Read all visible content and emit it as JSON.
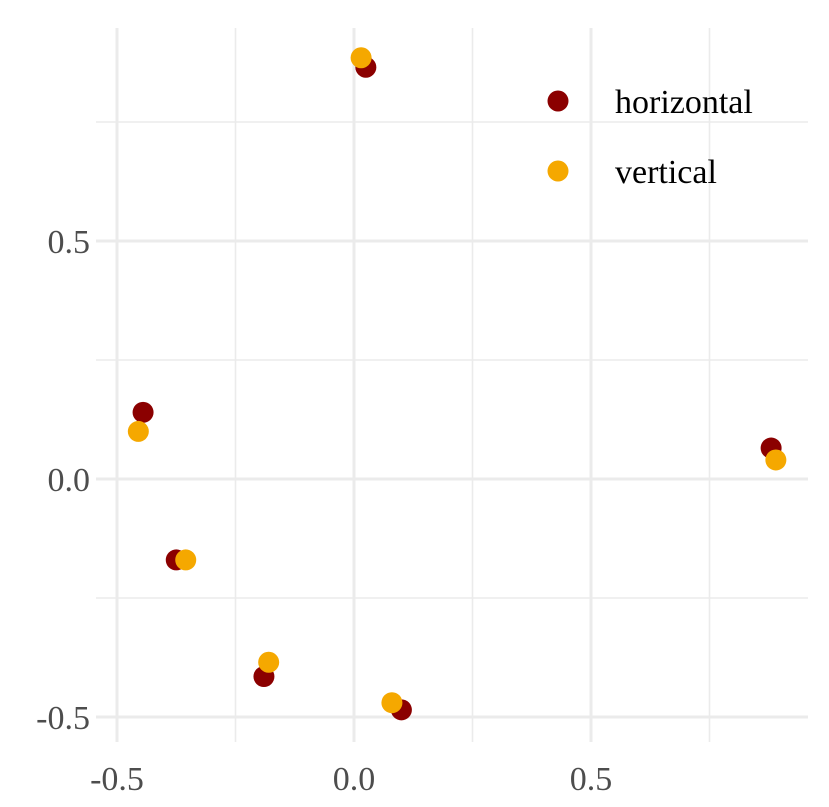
{
  "chart_data": {
    "type": "scatter",
    "title": "",
    "xlabel": "",
    "ylabel": "",
    "xlim": [
      -0.5,
      0.9
    ],
    "ylim": [
      -0.5,
      0.9
    ],
    "x_ticks": [
      -0.5,
      0.0,
      0.5
    ],
    "x_tick_labels": [
      "-0.5",
      "0.0",
      "0.5"
    ],
    "y_ticks": [
      -0.5,
      0.0,
      0.5
    ],
    "y_tick_labels": [
      "-0.5",
      "0.0",
      "0.5"
    ],
    "grid": true,
    "legend_position": "top-right",
    "series": [
      {
        "name": "horizontal",
        "color": "#8b0000",
        "points": [
          {
            "x": 0.025,
            "y": 0.865
          },
          {
            "x": -0.445,
            "y": 0.14
          },
          {
            "x": -0.375,
            "y": -0.17
          },
          {
            "x": -0.19,
            "y": -0.415
          },
          {
            "x": 0.1,
            "y": -0.485
          },
          {
            "x": 0.88,
            "y": 0.065
          }
        ]
      },
      {
        "name": "vertical",
        "color": "#f5a800",
        "points": [
          {
            "x": 0.015,
            "y": 0.885
          },
          {
            "x": -0.455,
            "y": 0.1
          },
          {
            "x": -0.355,
            "y": -0.17
          },
          {
            "x": -0.18,
            "y": -0.385
          },
          {
            "x": 0.08,
            "y": -0.47
          },
          {
            "x": 0.89,
            "y": 0.04
          }
        ]
      }
    ]
  }
}
